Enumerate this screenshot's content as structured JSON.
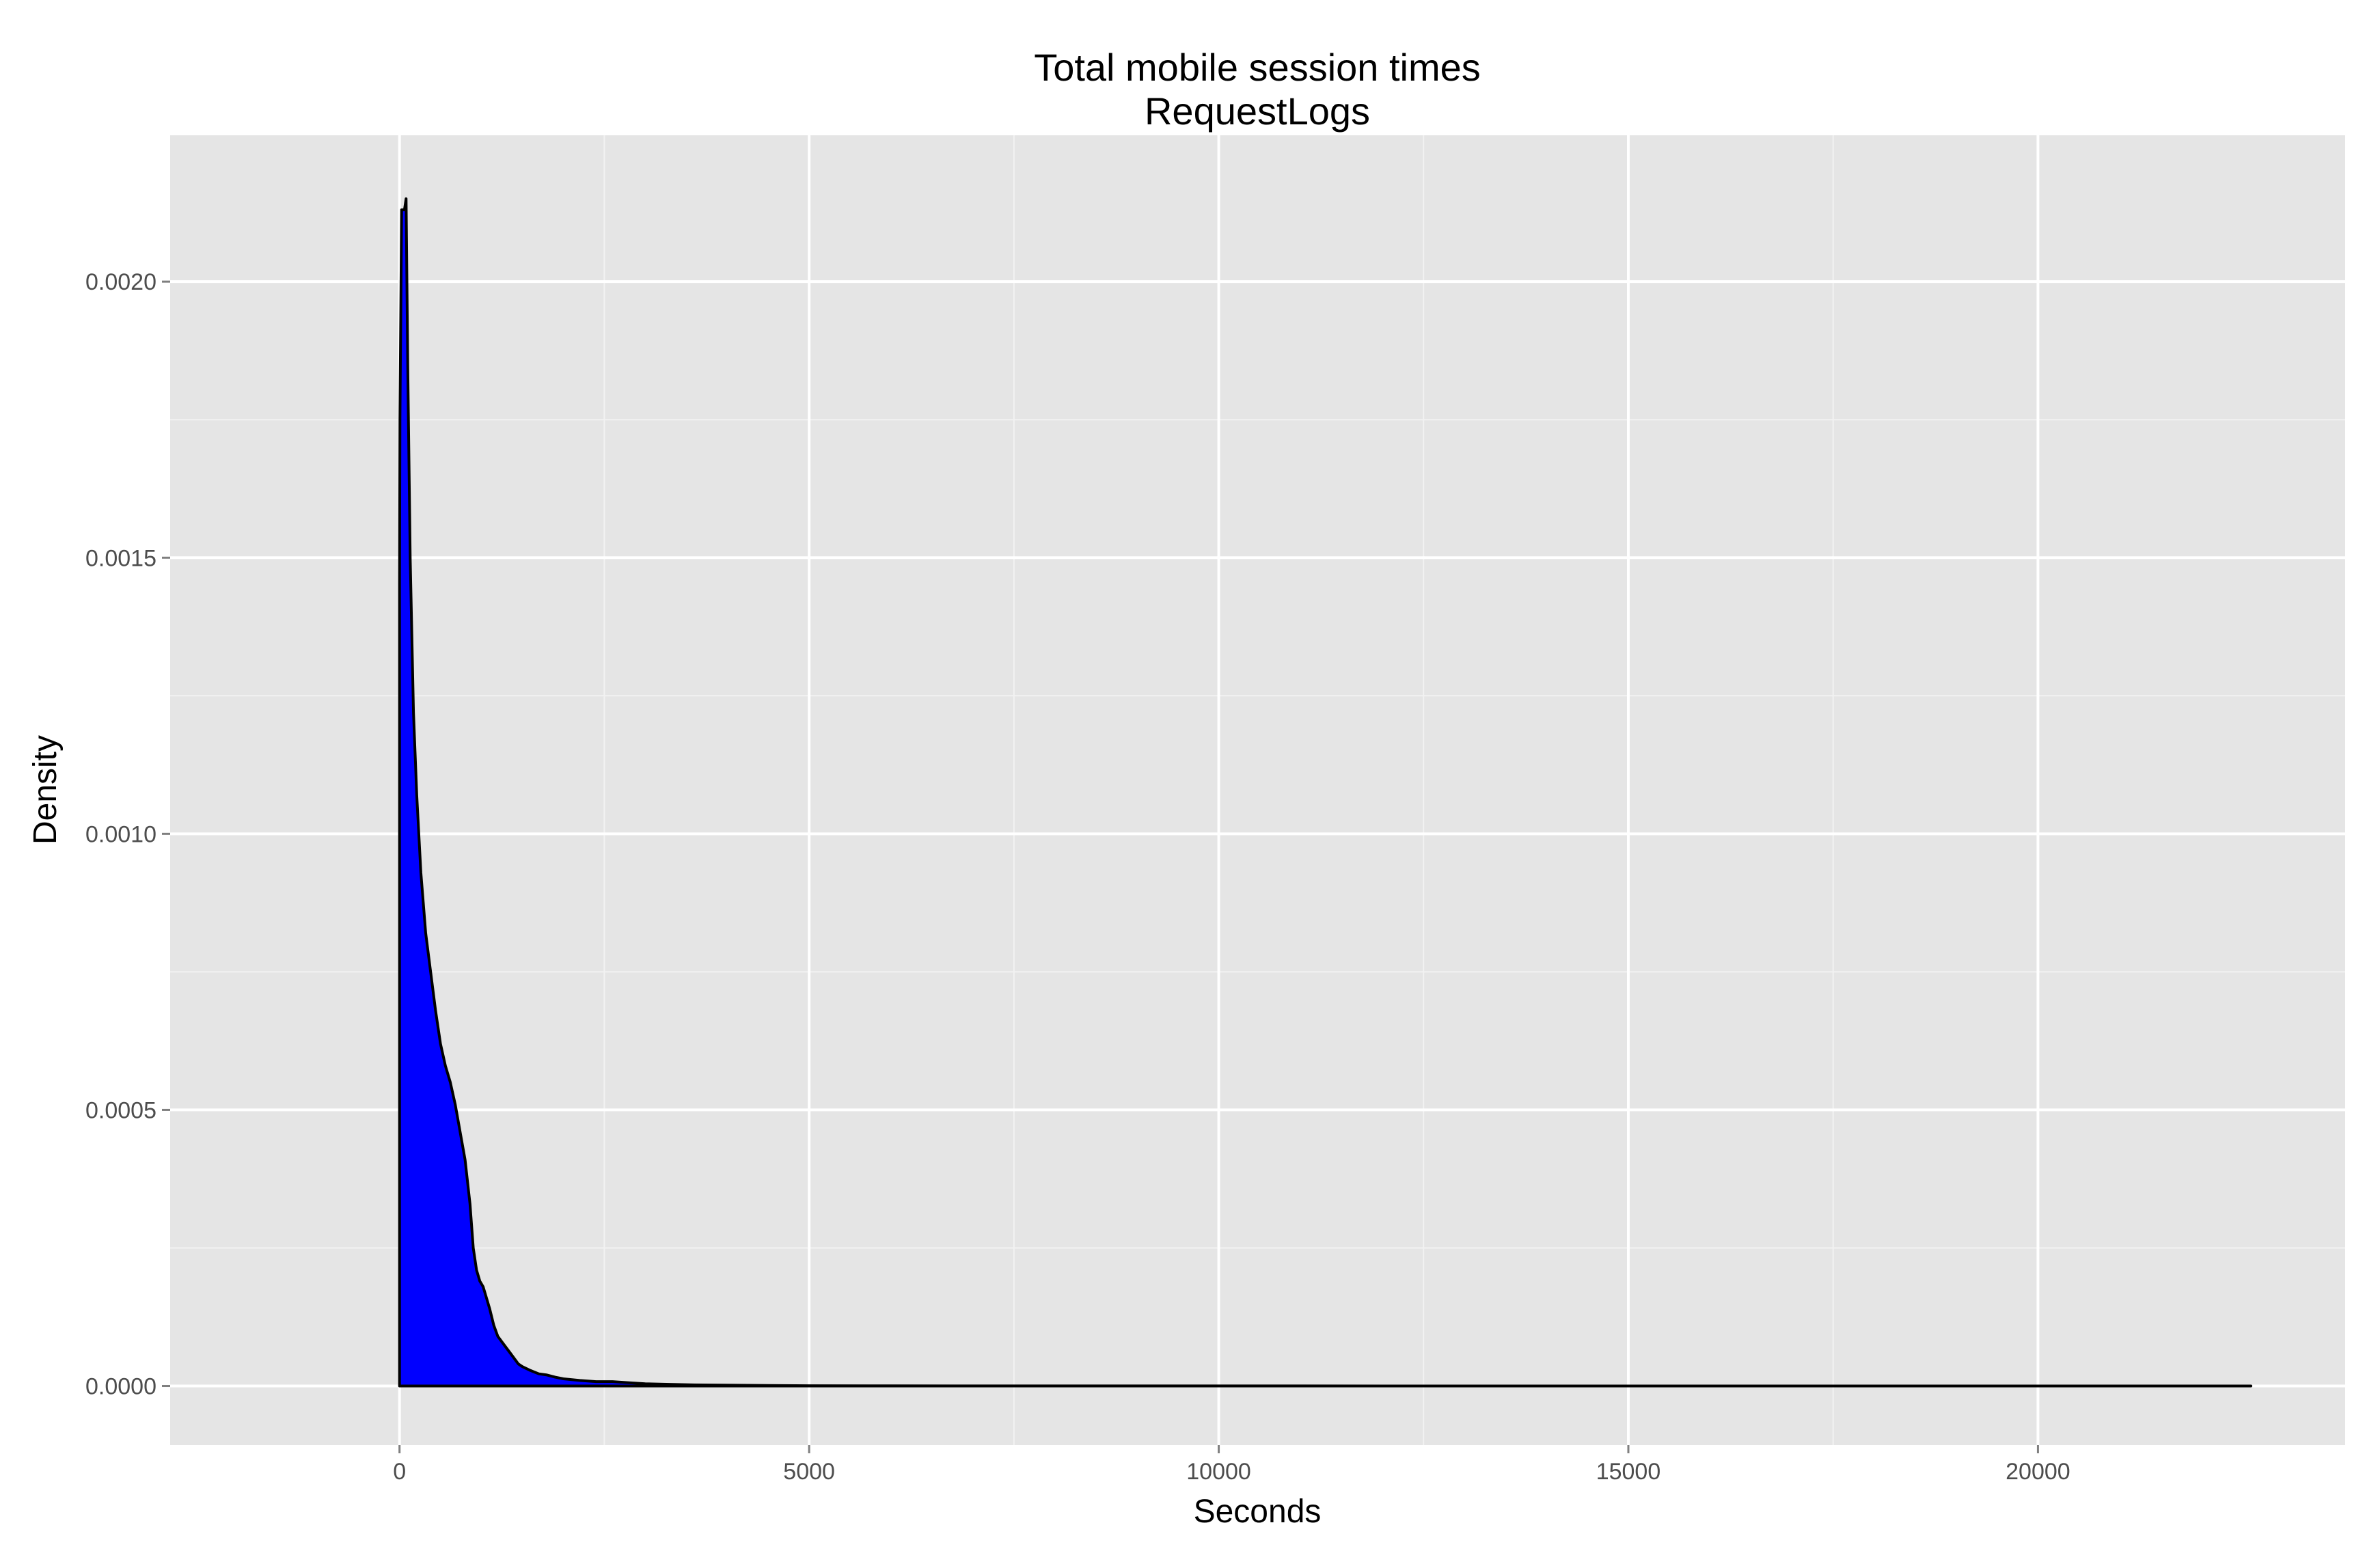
{
  "chart_data": {
    "type": "area",
    "title": "Total mobile session times",
    "subtitle": "RequestLogs",
    "xlabel": "Seconds",
    "ylabel": "Density",
    "xlim": [
      -2800,
      23750
    ],
    "ylim": [
      -0.000107,
      0.002265
    ],
    "x_ticks": [
      0,
      5000,
      10000,
      15000,
      20000
    ],
    "x_tick_labels": [
      "0",
      "5000",
      "10000",
      "15000",
      "20000"
    ],
    "x_minor_ticks": [
      2500,
      7500,
      12500,
      17500
    ],
    "y_ticks": [
      0,
      0.0005,
      0.001,
      0.0015,
      0.002
    ],
    "y_tick_labels": [
      "0.0000",
      "0.0005",
      "0.0010",
      "0.0015",
      "0.0020"
    ],
    "y_minor_ticks": [
      0.00025,
      0.00075,
      0.00125,
      0.00175
    ],
    "grid": true,
    "legend": "none",
    "colors": {
      "fill": "#0000ff",
      "stroke": "#000000",
      "panel": "#e5e5e5",
      "grid_major": "#ffffff",
      "grid_minor": "#f2f2f2",
      "tick_text": "#4d4d4d"
    },
    "series": [
      {
        "x": [
          0,
          5,
          25,
          60,
          80,
          100,
          130,
          170,
          210,
          260,
          320,
          380,
          440,
          500,
          560,
          620,
          680,
          740,
          800,
          830,
          860,
          900,
          940,
          980,
          1020,
          1060,
          1100,
          1150,
          1200,
          1250,
          1300,
          1350,
          1400,
          1450,
          1500,
          1600,
          1700,
          1800,
          1900,
          2000,
          2200,
          2400,
          2600,
          2800,
          3000,
          3300,
          3600,
          4000,
          4500,
          5000,
          6000,
          8000,
          10000,
          15000,
          20000,
          22600
        ],
        "y": [
          0.00145,
          0.00175,
          0.00213,
          0.00213,
          0.00215,
          0.00185,
          0.0015,
          0.00122,
          0.00107,
          0.00093,
          0.00082,
          0.00075,
          0.00068,
          0.00062,
          0.00058,
          0.00055,
          0.00051,
          0.00046,
          0.00041,
          0.00037,
          0.00033,
          0.00025,
          0.00021,
          0.00019,
          0.00018,
          0.00016,
          0.00014,
          0.00011,
          9e-05,
          8e-05,
          7e-05,
          6e-05,
          5e-05,
          4e-05,
          3.5e-05,
          2.8e-05,
          2.2e-05,
          2e-05,
          1.6e-05,
          1.3e-05,
          1e-05,
          8e-06,
          8e-06,
          6e-06,
          4e-06,
          3e-06,
          2e-06,
          1.5e-06,
          1e-06,
          5e-07,
          3e-07,
          1e-07,
          1e-07,
          0,
          0,
          0
        ]
      }
    ]
  }
}
